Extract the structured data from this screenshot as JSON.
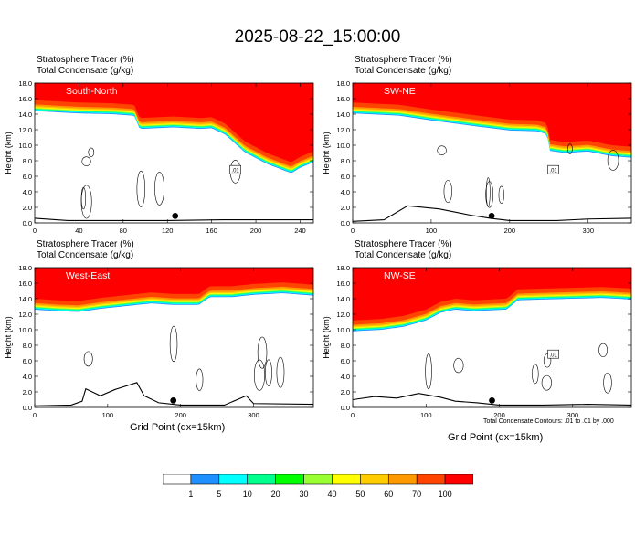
{
  "title": "2025-08-22_15:00:00",
  "chart_data": [
    {
      "type": "heatmap",
      "panel_label": "South-North",
      "header_line1": "Stratosphere Tracer   (%)",
      "header_line2": "Total Condensate   (g/kg)",
      "ylabel": "Height (km)",
      "xlim": [
        0,
        252
      ],
      "ylim": [
        0,
        18
      ],
      "x_ticks": [
        0,
        40,
        80,
        120,
        160,
        200,
        240
      ],
      "y_ticks": [
        "0.0",
        "2.0",
        "4.0",
        "6.0",
        "8.0",
        "10.0",
        "12.0",
        "14.0",
        "16.0",
        "18.0"
      ],
      "tropopause_km": [
        [
          0,
          15.8
        ],
        [
          40,
          15.5
        ],
        [
          70,
          15.4
        ],
        [
          90,
          15.2
        ],
        [
          95,
          13.5
        ],
        [
          125,
          13.7
        ],
        [
          150,
          13.5
        ],
        [
          160,
          13.6
        ],
        [
          172,
          12.8
        ],
        [
          190,
          10.5
        ],
        [
          210,
          9.0
        ],
        [
          232,
          7.8
        ],
        [
          240,
          8.5
        ],
        [
          252,
          9.2
        ]
      ],
      "terrain_km": [
        [
          0,
          0.6
        ],
        [
          30,
          0.3
        ],
        [
          60,
          0.3
        ],
        [
          120,
          0.3
        ],
        [
          170,
          0.4
        ],
        [
          210,
          0.4
        ],
        [
          252,
          0.4
        ]
      ],
      "contour_label": ".01",
      "marker_x": 127
    },
    {
      "type": "heatmap",
      "panel_label": "SW-NE",
      "header_line1": "Stratosphere Tracer   (%)",
      "header_line2": "Total Condensate   (g/kg)",
      "ylabel": "Height (km)",
      "xlim": [
        0,
        355
      ],
      "ylim": [
        0,
        18
      ],
      "x_ticks": [
        0,
        100,
        200,
        300
      ],
      "y_ticks": [
        "0.0",
        "2.0",
        "4.0",
        "6.0",
        "8.0",
        "10.0",
        "12.0",
        "14.0",
        "16.0",
        "18.0"
      ],
      "tropopause_km": [
        [
          0,
          15.5
        ],
        [
          60,
          15.2
        ],
        [
          100,
          14.6
        ],
        [
          130,
          14.2
        ],
        [
          160,
          13.8
        ],
        [
          200,
          13.3
        ],
        [
          235,
          13.2
        ],
        [
          248,
          12.8
        ],
        [
          250,
          10.7
        ],
        [
          270,
          10.4
        ],
        [
          300,
          10.6
        ],
        [
          330,
          10.0
        ],
        [
          355,
          9.8
        ]
      ],
      "terrain_km": [
        [
          0,
          0.2
        ],
        [
          40,
          0.4
        ],
        [
          70,
          2.2
        ],
        [
          110,
          1.8
        ],
        [
          150,
          1.0
        ],
        [
          175,
          0.6
        ],
        [
          200,
          0.3
        ],
        [
          260,
          0.3
        ],
        [
          300,
          0.5
        ],
        [
          355,
          0.6
        ]
      ],
      "contour_label": ".01",
      "marker_x": 177
    },
    {
      "type": "heatmap",
      "panel_label": "West-East",
      "header_line1": "Stratosphere Tracer   (%)",
      "header_line2": "Total Condensate   (g/kg)",
      "ylabel": "Height (km)",
      "xlim": [
        0,
        382
      ],
      "ylim": [
        0,
        18
      ],
      "x_ticks": [
        0,
        100,
        200,
        300
      ],
      "y_ticks": [
        "0.0",
        "2.0",
        "4.0",
        "6.0",
        "8.0",
        "10.0",
        "12.0",
        "14.0",
        "16.0",
        "18.0"
      ],
      "tropopause_km": [
        [
          0,
          14.0
        ],
        [
          30,
          13.8
        ],
        [
          60,
          13.7
        ],
        [
          90,
          14.1
        ],
        [
          130,
          14.5
        ],
        [
          160,
          14.8
        ],
        [
          190,
          14.6
        ],
        [
          225,
          14.6
        ],
        [
          240,
          15.6
        ],
        [
          270,
          15.6
        ],
        [
          300,
          15.9
        ],
        [
          340,
          16.1
        ],
        [
          382,
          15.8
        ]
      ],
      "terrain_km": [
        [
          0,
          0.2
        ],
        [
          50,
          0.3
        ],
        [
          65,
          0.8
        ],
        [
          70,
          2.4
        ],
        [
          90,
          1.5
        ],
        [
          110,
          2.3
        ],
        [
          140,
          3.2
        ],
        [
          150,
          1.5
        ],
        [
          170,
          0.6
        ],
        [
          200,
          0.3
        ],
        [
          260,
          0.3
        ],
        [
          290,
          1.5
        ],
        [
          300,
          0.5
        ],
        [
          382,
          0.4
        ]
      ],
      "contour_label": "",
      "marker_x": 190
    },
    {
      "type": "heatmap",
      "panel_label": "NW-SE",
      "header_line1": "Stratosphere Tracer   (%)",
      "header_line2": "Total Condensate   (g/kg)",
      "ylabel": "Height (km)",
      "xlim": [
        0,
        380
      ],
      "ylim": [
        0,
        18
      ],
      "x_ticks": [
        0,
        100,
        200,
        300
      ],
      "y_ticks": [
        "0.0",
        "2.0",
        "4.0",
        "6.0",
        "8.0",
        "10.0",
        "12.0",
        "14.0",
        "16.0",
        "18.0"
      ],
      "tropopause_km": [
        [
          0,
          11.2
        ],
        [
          40,
          11.4
        ],
        [
          70,
          11.8
        ],
        [
          100,
          12.6
        ],
        [
          120,
          13.6
        ],
        [
          140,
          14.0
        ],
        [
          165,
          13.8
        ],
        [
          210,
          14.0
        ],
        [
          225,
          15.2
        ],
        [
          260,
          15.3
        ],
        [
          300,
          15.4
        ],
        [
          340,
          15.5
        ],
        [
          380,
          15.3
        ]
      ],
      "terrain_km": [
        [
          0,
          1.0
        ],
        [
          30,
          1.4
        ],
        [
          60,
          1.2
        ],
        [
          90,
          1.8
        ],
        [
          120,
          1.3
        ],
        [
          140,
          0.8
        ],
        [
          170,
          0.6
        ],
        [
          200,
          0.3
        ],
        [
          260,
          0.3
        ],
        [
          320,
          0.4
        ],
        [
          380,
          0.3
        ]
      ],
      "contour_label": ".01",
      "marker_x": 190,
      "footnote": "Total Condensate Contours: .01 to .01 by .000"
    }
  ],
  "xlabel": "Grid Point (dx=15km)",
  "colorbar": {
    "labels": [
      "1",
      "5",
      "10",
      "20",
      "30",
      "40",
      "50",
      "60",
      "70",
      "100"
    ],
    "colors": [
      "#ffffff",
      "#1e90ff",
      "#00ffff",
      "#00ff8c",
      "#00ff00",
      "#99ff33",
      "#ffff00",
      "#ffcc00",
      "#ff9900",
      "#ff4400",
      "#ff0000"
    ]
  }
}
